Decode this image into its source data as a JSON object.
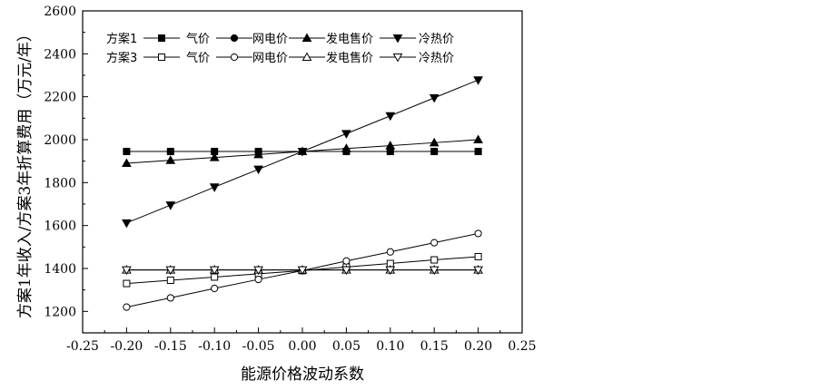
{
  "chart_data": {
    "type": "line",
    "xlabel": "能源价格波动系数",
    "ylabel": "方案1年收入/方案3年折算费用（万元/年）",
    "xlim": [
      -0.25,
      0.25
    ],
    "ylim": [
      1100,
      2600
    ],
    "xticks": [
      "-0.25",
      "-0.20",
      "-0.15",
      "-0.10",
      "-0.05",
      "0.00",
      "0.05",
      "0.10",
      "0.15",
      "0.20",
      "0.25"
    ],
    "yticks": [
      "1200",
      "1400",
      "1600",
      "1800",
      "2000",
      "2200",
      "2400",
      "2600"
    ],
    "x": [
      -0.2,
      -0.15,
      -0.1,
      -0.05,
      0.0,
      0.05,
      0.1,
      0.15,
      0.2
    ],
    "grid": false,
    "legend_position": "top-left",
    "legend": {
      "groups": [
        "方案1",
        "方案3"
      ],
      "items": [
        "气价",
        "网电价",
        "发电售价",
        "冷热价"
      ]
    },
    "series": [
      {
        "group": "方案1",
        "name": "气价",
        "marker": "square-filled",
        "values": [
          1945,
          1945,
          1945,
          1945,
          1945,
          1945,
          1945,
          1945,
          1945
        ]
      },
      {
        "group": "方案1",
        "name": "网电价",
        "marker": "circle-filled",
        "values": [
          1945,
          1945,
          1945,
          1945,
          1945,
          1945,
          1945,
          1945,
          1945
        ]
      },
      {
        "group": "方案1",
        "name": "发电售价",
        "marker": "triangle-up-filled",
        "values": [
          1890,
          1904,
          1917,
          1931,
          1945,
          1959,
          1972,
          1986,
          2000
        ]
      },
      {
        "group": "方案1",
        "name": "冷热价",
        "marker": "triangle-down-filled",
        "values": [
          1612,
          1695,
          1779,
          1862,
          1945,
          2028,
          2111,
          2195,
          2278
        ]
      },
      {
        "group": "方案3",
        "name": "气价",
        "marker": "square-open",
        "values": [
          1330,
          1345,
          1360,
          1375,
          1390,
          1407,
          1423,
          1440,
          1455
        ]
      },
      {
        "group": "方案3",
        "name": "网电价",
        "marker": "circle-open",
        "values": [
          1220,
          1263,
          1307,
          1349,
          1390,
          1435,
          1477,
          1520,
          1563
        ]
      },
      {
        "group": "方案3",
        "name": "发电售价",
        "marker": "triangle-up-open",
        "values": [
          1393,
          1393,
          1393,
          1393,
          1393,
          1393,
          1393,
          1393,
          1393
        ]
      },
      {
        "group": "方案3",
        "name": "冷热价",
        "marker": "triangle-down-open",
        "values": [
          1393,
          1393,
          1393,
          1393,
          1393,
          1393,
          1393,
          1393,
          1393
        ]
      }
    ]
  }
}
